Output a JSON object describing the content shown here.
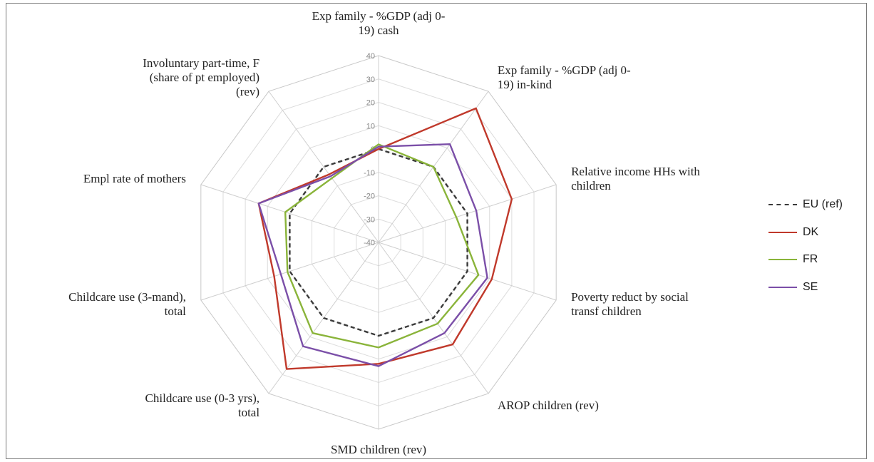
{
  "chart_data": {
    "type": "radar",
    "axes": [
      [
        "Exp family - %GDP (adj 0-",
        "19) cash"
      ],
      [
        "Exp family - %GDP (adj 0-",
        "19) in-kind"
      ],
      [
        "Relative income HHs with",
        "children"
      ],
      [
        "Poverty reduct by social",
        "transf children"
      ],
      [
        "AROP children (rev)"
      ],
      [
        "SMD children (rev)"
      ],
      [
        "Childcare use (0-3 yrs),",
        "total"
      ],
      [
        "Childcare use (3-mand),",
        "total"
      ],
      [
        "Empl rate of mothers"
      ],
      [
        "Involuntary part-time, F",
        "(share of pt employed)",
        "(rev)"
      ]
    ],
    "rlim": [
      -40,
      40
    ],
    "ticks": [
      -40,
      -30,
      -20,
      -10,
      0,
      10,
      20,
      30,
      40
    ],
    "series": [
      {
        "name": "EU (ref)",
        "color": "#3a3a3a",
        "dash": "6,4",
        "values": [
          0,
          0,
          0,
          0,
          0,
          0,
          0,
          0,
          0,
          0
        ]
      },
      {
        "name": "DK",
        "color": "#c0392b",
        "dash": "",
        "values": [
          0,
          31,
          20,
          11,
          14,
          12,
          27,
          7,
          14,
          -4
        ]
      },
      {
        "name": "FR",
        "color": "#8ab43a",
        "dash": "",
        "values": [
          2,
          0,
          -5,
          5,
          3,
          5,
          8,
          1,
          2,
          -6
        ]
      },
      {
        "name": "SE",
        "color": "#7b4fa8",
        "dash": "",
        "values": [
          1,
          12,
          4,
          9,
          8,
          13,
          15,
          4,
          14,
          -5
        ]
      }
    ]
  }
}
